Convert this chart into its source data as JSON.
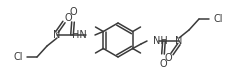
{
  "bg_color": "#ffffff",
  "line_color": "#3a3a3a",
  "text_color": "#3a3a3a",
  "bond_lw": 1.1,
  "font_size": 7.0
}
